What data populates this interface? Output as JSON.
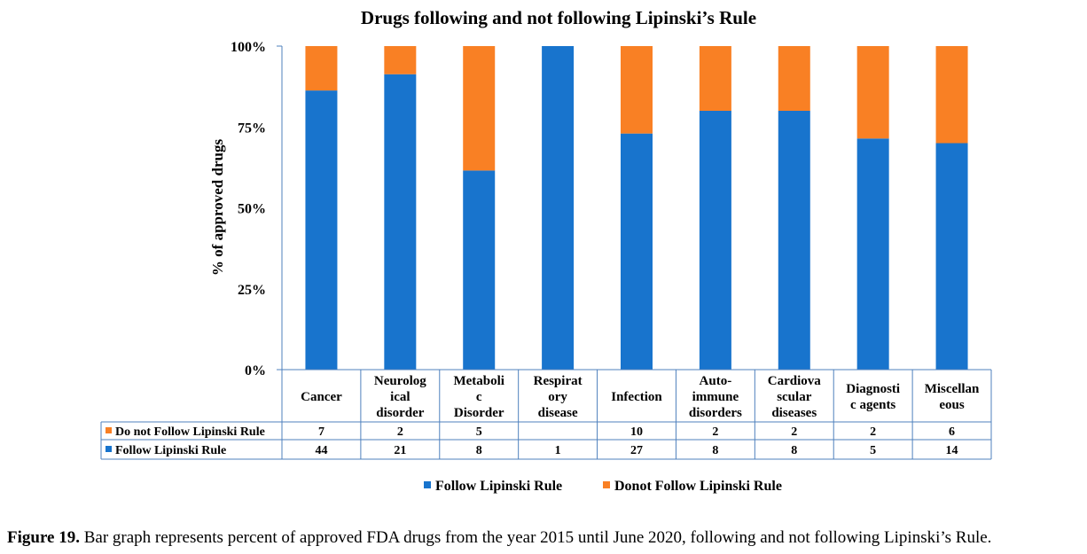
{
  "chart_data": {
    "type": "bar",
    "stacked": true,
    "normalized": true,
    "title": "Drugs following and not following Lipinski’s Rule",
    "ylabel": "% of approved drugs",
    "xlabel": "",
    "ylim": [
      0,
      100
    ],
    "y_ticks": [
      "0%",
      "25%",
      "50%",
      "75%",
      "100%"
    ],
    "categories": [
      [
        "Cancer"
      ],
      [
        "Neurolog",
        "ical",
        "disorder"
      ],
      [
        "Metaboli",
        "c",
        "Disorder"
      ],
      [
        "Respirat",
        "ory",
        "disease"
      ],
      [
        "Infection"
      ],
      [
        "Auto-",
        "immune",
        "disorders"
      ],
      [
        "Cardiova",
        "scular",
        "diseases"
      ],
      [
        "Diagnosti",
        "c agents"
      ],
      [
        "Miscellan",
        "eous"
      ]
    ],
    "series": [
      {
        "name": "Follow Lipinski Rule",
        "table_label": "Follow Lipinski Rule",
        "color": "#1874CD",
        "values": [
          44,
          21,
          8,
          1,
          27,
          8,
          8,
          5,
          14
        ]
      },
      {
        "name": "Donot Follow Lipinski Rule",
        "table_label": "Do not Follow Lipinski Rule",
        "color": "#F98024",
        "values": [
          7,
          2,
          5,
          null,
          10,
          2,
          2,
          2,
          6
        ]
      }
    ],
    "grid": false,
    "legend_placement": "bottom-center",
    "data_table": true
  },
  "caption": {
    "label": "Figure 19.",
    "text": " Bar graph represents percent of approved FDA drugs from the year 2015 until June 2020, following and not following Lipinski’s Rule."
  },
  "colors": {
    "axis": "#4F81BD"
  }
}
